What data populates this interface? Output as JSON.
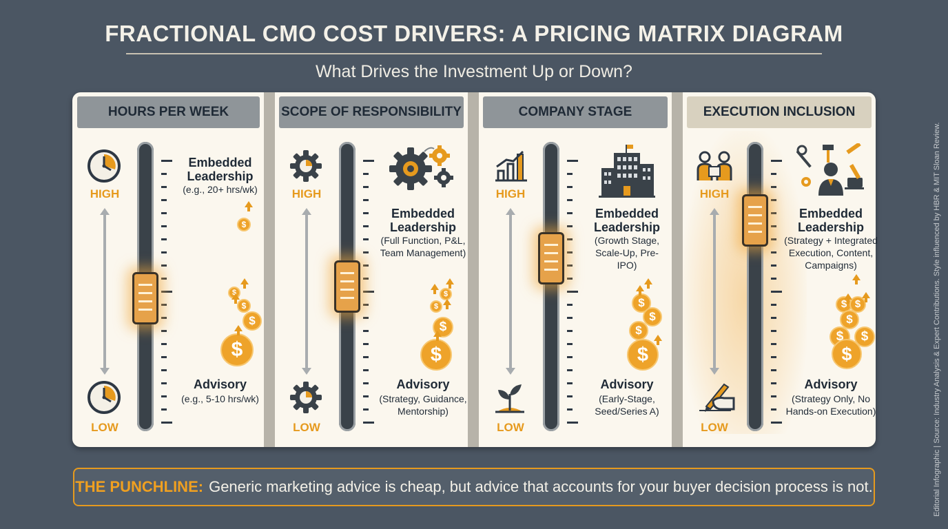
{
  "title": "FRACTIONAL CMO COST DRIVERS: A PRICING MATRIX DIAGRAM",
  "subtitle": "What Drives the Investment Up or Down?",
  "columns": [
    {
      "header": "HOURS PER WEEK",
      "high_label": "HIGH",
      "low_label": "LOW",
      "high_heading": "Embedded Leadership",
      "high_desc": "(e.g., 20+ hrs/wk)",
      "low_heading": "Advisory",
      "low_desc": "(e.g., 5-10 hrs/wk)",
      "high_icon": "clock-icon",
      "low_icon": "clock-icon",
      "slider_level": 0.45,
      "highlighted": false
    },
    {
      "header": "SCOPE OF RESPONSIBILITY",
      "high_label": "HIGH",
      "low_label": "LOW",
      "high_heading": "Embedded Leadership",
      "high_desc": "(Full Function, P&L, Team Management)",
      "low_heading": "Advisory",
      "low_desc": "(Strategy, Guidance, Mentorship)",
      "high_icon": "gear-icon",
      "low_icon": "gear-icon",
      "slider_level": 0.5,
      "highlighted": false
    },
    {
      "header": "COMPANY STAGE",
      "high_label": "HIGH",
      "low_label": "LOW",
      "high_heading": "Embedded Leadership",
      "high_desc": "(Growth Stage, Scale-Up, Pre-IPO)",
      "low_heading": "Advisory",
      "low_desc": "(Early-Stage, Seed/Series A)",
      "high_icon": "growth-chart-icon",
      "low_icon": "sprout-icon",
      "slider_level": 0.62,
      "highlighted": false
    },
    {
      "header": "EXECUTION INCLUSION",
      "high_label": "HIGH",
      "low_label": "LOW",
      "high_heading": "Embedded Leadership",
      "high_desc": "(Strategy + Integrated Execution, Content, Campaigns)",
      "low_heading": "Advisory",
      "low_desc": "(Strategy Only, No Hands-on Execution)",
      "high_icon": "team-icon",
      "low_icon": "writing-hand-icon",
      "slider_level": 0.78,
      "highlighted": true
    }
  ],
  "punchline": {
    "label": "THE PUNCHLINE:",
    "text": "Generic marketing advice is cheap, but advice that accounts for your buyer decision process is not."
  },
  "side_note": "Editorial Infographic | Source: Industry Analysis & Expert Contributions. Style influenced by HBR & MIT Sloan Review.",
  "colors": {
    "accent": "#e69a1e",
    "background": "#4b5663",
    "panel": "#fbf7ee"
  }
}
